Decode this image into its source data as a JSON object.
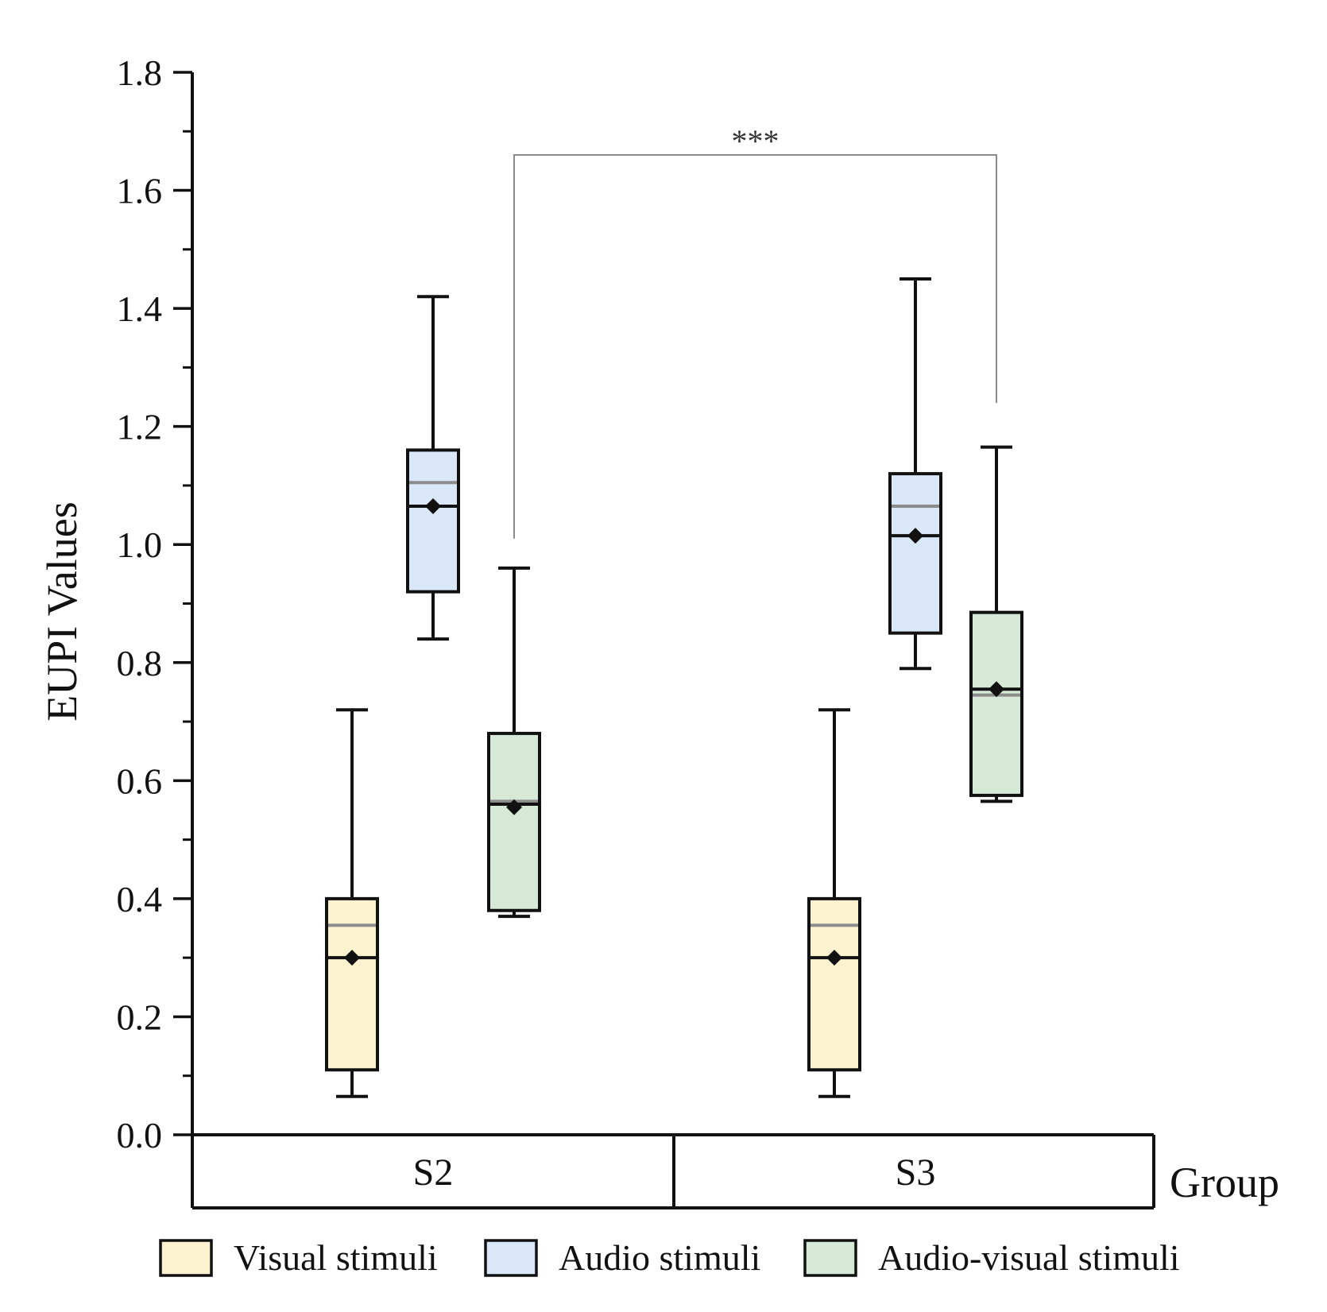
{
  "chart_data": {
    "type": "box",
    "title": "",
    "ylabel": "EUPI Values",
    "xlabel": "Group",
    "ylim": [
      0,
      1.8
    ],
    "y_ticks": [
      "0.0",
      "0.2",
      "0.4",
      "0.6",
      "0.8",
      "1.0",
      "1.2",
      "1.4",
      "1.6",
      "1.8"
    ],
    "categories": [
      "S2",
      "S3"
    ],
    "legend_position": "bottom",
    "series": [
      {
        "name": "Visual stimuli",
        "color": "#fdf2cf",
        "boxes": [
          {
            "group": "S2",
            "min": 0.065,
            "q1": 0.11,
            "median": 0.3,
            "q3": 0.4,
            "max": 0.72,
            "mean": 0.3,
            "alt_median": 0.355
          },
          {
            "group": "S3",
            "min": 0.065,
            "q1": 0.11,
            "median": 0.3,
            "q3": 0.4,
            "max": 0.72,
            "mean": 0.3,
            "alt_median": 0.355
          }
        ]
      },
      {
        "name": "Audio stimuli",
        "color": "#dae7f8",
        "boxes": [
          {
            "group": "S2",
            "min": 0.84,
            "q1": 0.92,
            "median": 1.065,
            "q3": 1.16,
            "max": 1.42,
            "mean": 1.065,
            "alt_median": 1.105
          },
          {
            "group": "S3",
            "min": 0.79,
            "q1": 0.85,
            "median": 1.015,
            "q3": 1.12,
            "max": 1.45,
            "mean": 1.015,
            "alt_median": 1.065
          }
        ]
      },
      {
        "name": "Audio-visual stimuli",
        "color": "#d6e9d7",
        "boxes": [
          {
            "group": "S2",
            "min": 0.37,
            "q1": 0.38,
            "median": 0.56,
            "q3": 0.68,
            "max": 0.96,
            "mean": 0.555,
            "alt_median": 0.565
          },
          {
            "group": "S3",
            "min": 0.565,
            "q1": 0.575,
            "median": 0.755,
            "q3": 0.885,
            "max": 1.165,
            "mean": 0.755,
            "alt_median": 0.745
          }
        ]
      }
    ],
    "annotations": [
      {
        "text": "***",
        "from": "S2 Audio-visual stimuli",
        "to": "S3 Audio-visual stimuli",
        "y_top": 1.66,
        "y_left_end": 1.01,
        "y_right_end": 1.24
      }
    ]
  }
}
